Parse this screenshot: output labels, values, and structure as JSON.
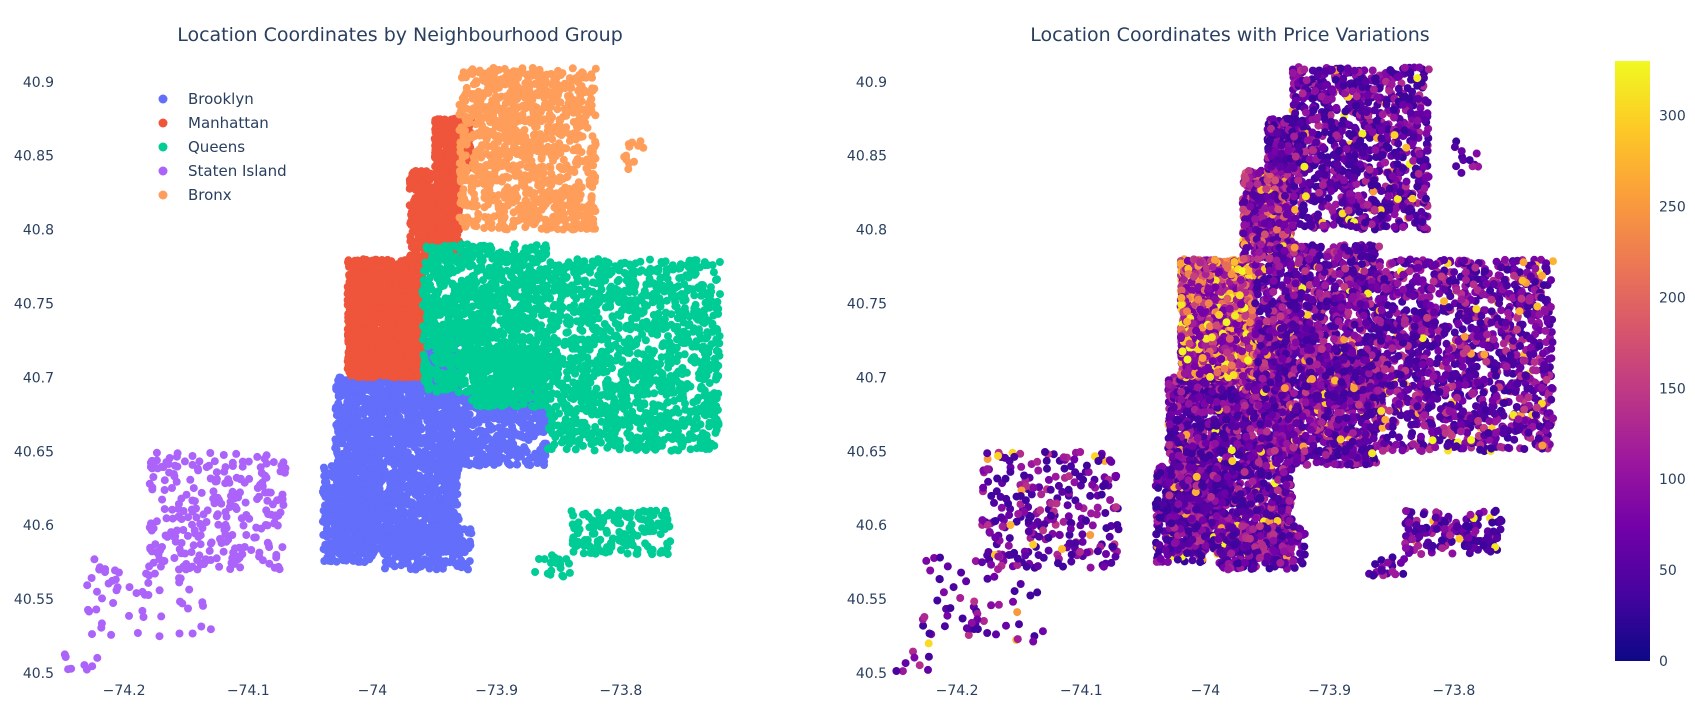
{
  "chart_data": [
    {
      "type": "scatter",
      "title": "Location Coordinates by Neighbourhood Group",
      "xlabel": "",
      "ylabel": "",
      "xlim": [
        -74.25,
        -73.7
      ],
      "ylim": [
        40.5,
        40.91
      ],
      "x_ticks": [
        "−74.2",
        "−74.1",
        "−74",
        "−73.9",
        "−73.8"
      ],
      "y_ticks": [
        "40.5",
        "40.55",
        "40.6",
        "40.65",
        "40.7",
        "40.75",
        "40.8",
        "40.85",
        "40.9"
      ],
      "grid": false,
      "legend_position": "top-left",
      "series": [
        {
          "name": "Brooklyn",
          "color": "#636efa",
          "regions": [
            {
              "x": [
                -74.03,
                -73.93
              ],
              "y": [
                40.58,
                40.7
              ],
              "n": 1800
            },
            {
              "x": [
                -73.97,
                -73.93
              ],
              "y": [
                40.68,
                40.735
              ],
              "n": 300
            },
            {
              "x": [
                -74.04,
                -74.0
              ],
              "y": [
                40.575,
                40.64
              ],
              "n": 300
            },
            {
              "x": [
                -73.93,
                -73.86
              ],
              "y": [
                40.64,
                40.69
              ],
              "n": 400
            },
            {
              "x": [
                -73.99,
                -73.92
              ],
              "y": [
                40.57,
                40.6
              ],
              "n": 200
            }
          ]
        },
        {
          "name": "Manhattan",
          "color": "#ef553b",
          "regions": [
            {
              "x": [
                -74.02,
                -73.96
              ],
              "y": [
                40.7,
                40.78
              ],
              "n": 1400
            },
            {
              "x": [
                -73.97,
                -73.93
              ],
              "y": [
                40.78,
                40.84
              ],
              "n": 500
            },
            {
              "x": [
                -73.95,
                -73.92
              ],
              "y": [
                40.84,
                40.875
              ],
              "n": 250
            }
          ]
        },
        {
          "name": "Queens",
          "color": "#00cc96",
          "regions": [
            {
              "x": [
                -73.96,
                -73.86
              ],
              "y": [
                40.69,
                40.79
              ],
              "n": 1100
            },
            {
              "x": [
                -73.86,
                -73.72
              ],
              "y": [
                40.65,
                40.78
              ],
              "n": 1300
            },
            {
              "x": [
                -73.92,
                -73.86
              ],
              "y": [
                40.68,
                40.72
              ],
              "n": 300
            },
            {
              "x": [
                -73.84,
                -73.76
              ],
              "y": [
                40.58,
                40.61
              ],
              "n": 150
            },
            {
              "x": [
                -73.87,
                -73.84
              ],
              "y": [
                40.565,
                40.58
              ],
              "n": 20
            }
          ]
        },
        {
          "name": "Staten Island",
          "color": "#ab63fa",
          "regions": [
            {
              "x": [
                -74.18,
                -74.07
              ],
              "y": [
                40.57,
                40.65
              ],
              "n": 260
            },
            {
              "x": [
                -74.23,
                -74.13
              ],
              "y": [
                40.52,
                40.58
              ],
              "n": 60
            },
            {
              "x": [
                -74.25,
                -74.22
              ],
              "y": [
                40.5,
                40.515
              ],
              "n": 8
            }
          ]
        },
        {
          "name": "Bronx",
          "color": "#fe9e5a",
          "regions": [
            {
              "x": [
                -73.93,
                -73.82
              ],
              "y": [
                40.8,
                40.91
              ],
              "n": 1000
            },
            {
              "x": [
                -73.8,
                -73.78
              ],
              "y": [
                40.835,
                40.86
              ],
              "n": 12
            }
          ]
        }
      ]
    },
    {
      "type": "scatter",
      "title": "Location Coordinates with Price Variations",
      "xlabel": "",
      "ylabel": "",
      "xlim": [
        -74.25,
        -73.7
      ],
      "ylim": [
        40.5,
        40.91
      ],
      "x_ticks": [
        "−74.2",
        "−74.1",
        "−74",
        "−73.9",
        "−73.8"
      ],
      "y_ticks": [
        "40.5",
        "40.55",
        "40.6",
        "40.65",
        "40.7",
        "40.75",
        "40.8",
        "40.85",
        "40.9"
      ],
      "grid": false,
      "color_variable": "price",
      "colorbar": {
        "min": 0,
        "max": 330,
        "ticks": [
          "0",
          "50",
          "100",
          "150",
          "200",
          "250",
          "300"
        ],
        "colorscale": [
          "#0d0887",
          "#46039f",
          "#7201a8",
          "#9c179e",
          "#bd3786",
          "#d8576b",
          "#ed7953",
          "#fb9f3a",
          "#fdca26",
          "#f0f921"
        ]
      },
      "price_regions": [
        {
          "x": [
            -74.02,
            -73.96
          ],
          "y": [
            40.7,
            40.78
          ],
          "mean_price": 210
        },
        {
          "x": [
            -73.97,
            -73.93
          ],
          "y": [
            40.78,
            40.84
          ],
          "mean_price": 130
        },
        {
          "x": [
            -74.03,
            -73.93
          ],
          "y": [
            40.58,
            40.7
          ],
          "mean_price": 90
        },
        {
          "x": [
            -73.96,
            -73.72
          ],
          "y": [
            40.65,
            40.79
          ],
          "mean_price": 95
        },
        {
          "x": [
            -73.93,
            -73.82
          ],
          "y": [
            40.8,
            40.91
          ],
          "mean_price": 85
        },
        {
          "x": [
            -74.25,
            -74.07
          ],
          "y": [
            40.5,
            40.65
          ],
          "mean_price": 90
        }
      ]
    }
  ]
}
